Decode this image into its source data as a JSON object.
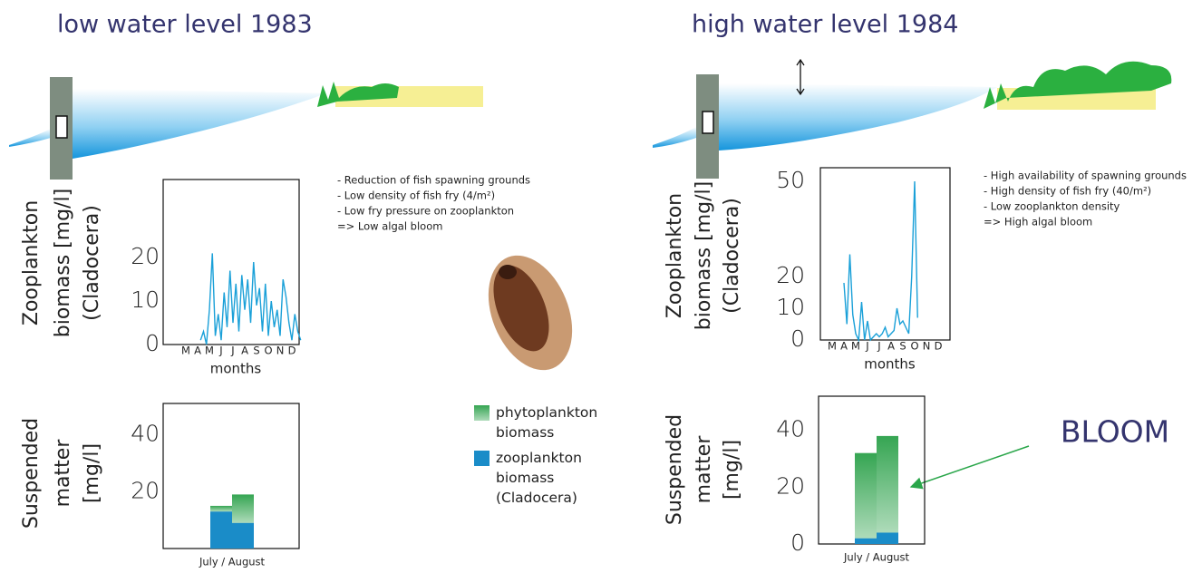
{
  "panels": [
    {
      "title": "low water level 1983",
      "notes": [
        "- Reduction of fish spawning grounds",
        "- Low density of fish fry (4/m²)",
        "- Low fry pressure on zooplankton",
        "=>  Low algal bloom"
      ]
    },
    {
      "title": "high water level 1984",
      "notes": [
        "- High availability of spawning grounds",
        "- High density of fish fry (40/m²)",
        "- Low zooplankton density",
        "=>  High algal bloom"
      ]
    }
  ],
  "chart_data": [
    {
      "type": "line",
      "xlabel": "months",
      "ylabel": [
        "Zooplankton",
        "biomass [mg/l]",
        "(Cladocera)"
      ],
      "categories": [
        "M",
        null,
        null,
        null,
        "A",
        null,
        null,
        null,
        "M",
        null,
        null,
        null,
        "J",
        null,
        null,
        null,
        "J",
        null,
        null,
        null,
        "A",
        null,
        null,
        null,
        "S",
        null,
        null,
        null,
        "O",
        null,
        null,
        null,
        "N",
        null,
        null,
        null,
        "D",
        null,
        null,
        null
      ],
      "values": [
        null,
        null,
        null,
        null,
        null,
        1,
        3,
        0,
        8,
        21,
        2,
        7,
        1,
        12,
        4,
        17,
        5,
        14,
        3,
        16,
        8,
        15,
        5,
        19,
        9,
        13,
        3,
        14,
        2,
        10,
        4,
        8,
        2,
        15,
        11,
        5,
        1,
        7,
        3,
        1
      ],
      "color": "#1aa0d8",
      "ylim": [
        0,
        38
      ],
      "yticks": [
        0,
        10,
        20
      ]
    },
    {
      "type": "bar",
      "stacked": true,
      "xlabel": "July / August",
      "ylabel": [
        "Suspended",
        "matter",
        "[mg/l]"
      ],
      "categories": [
        null,
        null
      ],
      "ylim": [
        0,
        51
      ],
      "yticks": [
        20,
        40
      ],
      "series": [
        {
          "name": "zooplankton biomass (Cladocera)",
          "color": "#1a8cc8",
          "values": [
            13,
            9
          ]
        },
        {
          "name": "phytoplankton biomass",
          "color": "#35a552",
          "values": [
            2,
            10
          ]
        }
      ]
    },
    {
      "type": "line",
      "xlabel": "months",
      "ylabel": [
        "Zooplankton",
        "biomass [mg/l]",
        "(Cladocera)"
      ],
      "categories": [
        "M",
        null,
        null,
        null,
        "A",
        null,
        null,
        null,
        "M",
        null,
        null,
        null,
        "J",
        null,
        null,
        null,
        "J",
        null,
        null,
        null,
        "A",
        null,
        null,
        null,
        "S",
        null,
        null,
        null,
        "O",
        null,
        null,
        null,
        "N",
        null,
        null,
        null,
        "D",
        null,
        null,
        null
      ],
      "values": [
        null,
        null,
        null,
        null,
        18,
        5,
        27,
        8,
        2,
        0,
        12,
        0,
        6,
        0,
        1,
        2,
        1,
        2,
        4,
        1,
        2,
        3,
        10,
        5,
        6,
        4,
        2,
        20,
        50,
        7,
        null,
        null,
        null,
        null,
        null,
        null,
        null,
        null,
        null,
        null
      ],
      "color": "#1aa0d8",
      "ylim": [
        0,
        50
      ],
      "yticks": [
        0,
        10,
        20,
        50
      ]
    },
    {
      "type": "bar",
      "stacked": true,
      "xlabel": "July / August",
      "ylabel": [
        "Suspended",
        "matter",
        "[mg/l]"
      ],
      "categories": [
        null,
        null
      ],
      "ylim": [
        0,
        52
      ],
      "yticks": [
        0,
        20,
        40
      ],
      "annotation": "BLOOM",
      "series": [
        {
          "color": "#1a8cc8",
          "values": [
            2,
            4
          ]
        },
        {
          "color": "#35a552",
          "values": [
            30,
            34
          ]
        }
      ]
    }
  ]
}
